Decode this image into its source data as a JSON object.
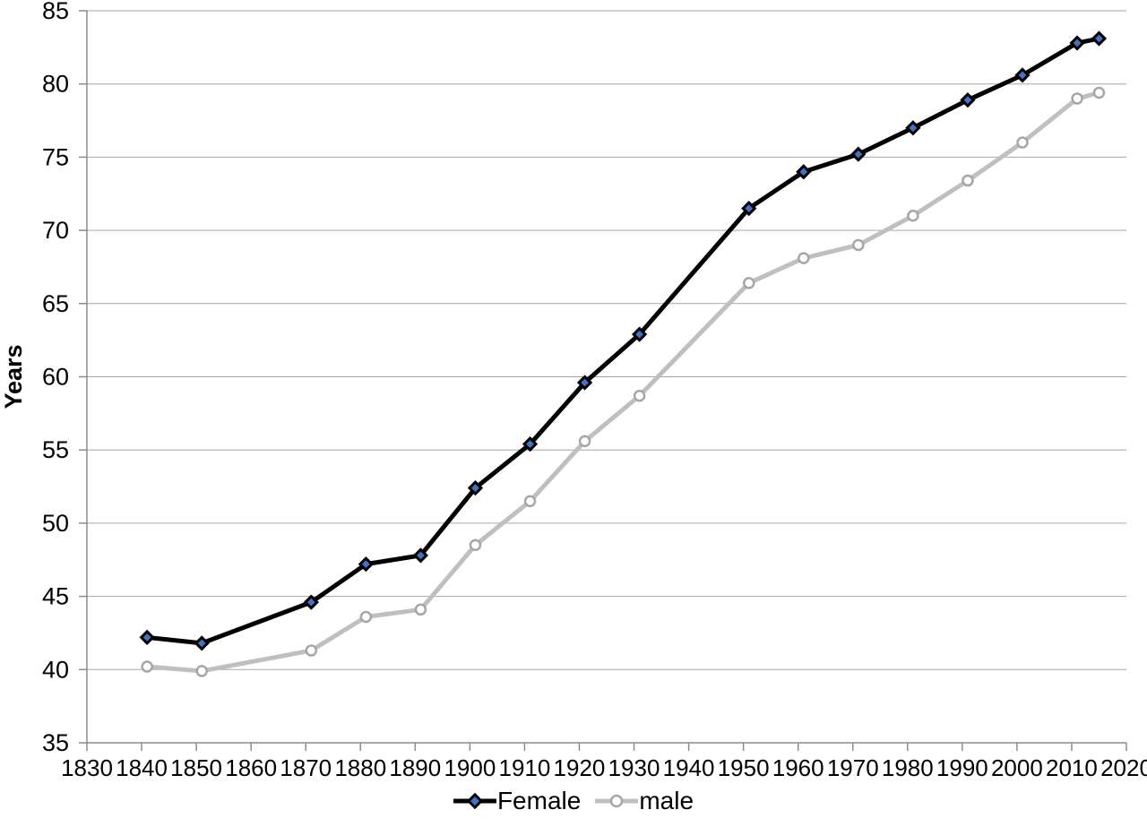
{
  "chart_data": {
    "type": "line",
    "title": "",
    "xlabel": "",
    "ylabel": "Years",
    "xlim": [
      1830,
      2020
    ],
    "ylim": [
      35,
      85
    ],
    "x_ticks": [
      1830,
      1840,
      1850,
      1860,
      1870,
      1880,
      1890,
      1900,
      1910,
      1920,
      1930,
      1940,
      1950,
      1960,
      1970,
      1980,
      1990,
      2000,
      2010,
      2020
    ],
    "y_ticks": [
      35,
      40,
      45,
      50,
      55,
      60,
      65,
      70,
      75,
      80,
      85
    ],
    "grid": "horizontal",
    "legend_position": "bottom-center",
    "x": [
      1841,
      1851,
      1871,
      1881,
      1891,
      1901,
      1911,
      1921,
      1931,
      1951,
      1961,
      1971,
      1981,
      1991,
      2001,
      2011,
      2015
    ],
    "series": [
      {
        "name": "Female",
        "marker": "diamond",
        "line_color": "#000000",
        "marker_fill": "#4472C4",
        "marker_stroke": "#000000",
        "values": [
          42.2,
          41.8,
          44.6,
          47.2,
          47.8,
          52.4,
          55.4,
          59.6,
          62.9,
          71.5,
          74.0,
          75.2,
          77.0,
          78.9,
          80.6,
          82.8,
          83.1
        ]
      },
      {
        "name": "male",
        "marker": "circle",
        "line_color": "#BFBFBF",
        "marker_fill": "#FFFFFF",
        "marker_stroke": "#A6A6A6",
        "values": [
          40.2,
          39.9,
          41.3,
          43.6,
          44.1,
          48.5,
          51.5,
          55.6,
          58.7,
          66.4,
          68.1,
          69.0,
          71.0,
          73.4,
          76.0,
          79.0,
          79.4
        ]
      }
    ],
    "grid_color": "#A6A6A6",
    "axis_color": "#8C8C8C",
    "text_color": "#000000",
    "background_color": "#FFFFFF"
  }
}
